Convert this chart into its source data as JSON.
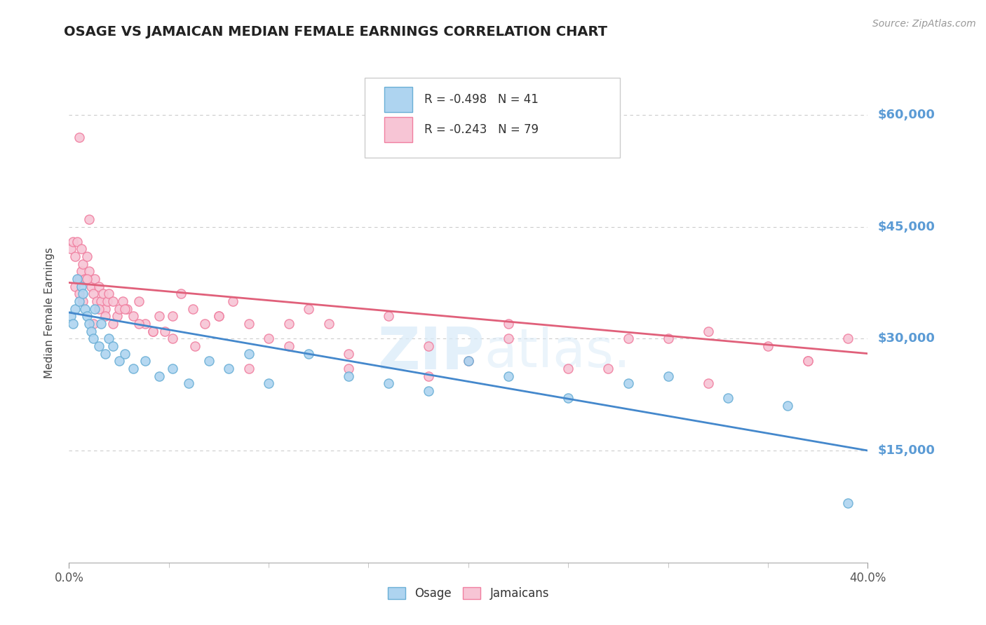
{
  "title": "OSAGE VS JAMAICAN MEDIAN FEMALE EARNINGS CORRELATION CHART",
  "ylabel": "Median Female Earnings",
  "source": "Source: ZipAtlas.com",
  "xlim": [
    0.0,
    0.4
  ],
  "ylim": [
    0,
    67000
  ],
  "yticks": [
    15000,
    30000,
    45000,
    60000
  ],
  "ytick_labels": [
    "$15,000",
    "$30,000",
    "$45,000",
    "$60,000"
  ],
  "xtick_labels": [
    "0.0%",
    "40.0%"
  ],
  "background_color": "#ffffff",
  "grid_color": "#cccccc",
  "osage_color": "#aed4f0",
  "jamaican_color": "#f7c5d5",
  "osage_edge_color": "#6aafd6",
  "jamaican_edge_color": "#f07fa0",
  "osage_line_color": "#4488cc",
  "jamaican_line_color": "#e0607a",
  "ytick_color": "#5b9bd5",
  "watermark_color": "#d8eaf8",
  "legend_R_osage": "R = -0.498",
  "legend_N_osage": "N = 41",
  "legend_R_jamaican": "R = -0.243",
  "legend_N_jamaican": "N = 79",
  "osage_x": [
    0.001,
    0.002,
    0.003,
    0.004,
    0.005,
    0.006,
    0.007,
    0.008,
    0.009,
    0.01,
    0.011,
    0.012,
    0.013,
    0.015,
    0.016,
    0.018,
    0.02,
    0.022,
    0.025,
    0.028,
    0.032,
    0.038,
    0.045,
    0.052,
    0.06,
    0.07,
    0.08,
    0.09,
    0.1,
    0.12,
    0.14,
    0.16,
    0.18,
    0.2,
    0.22,
    0.25,
    0.28,
    0.3,
    0.33,
    0.36,
    0.39
  ],
  "osage_y": [
    33000,
    32000,
    34000,
    38000,
    35000,
    37000,
    36000,
    34000,
    33000,
    32000,
    31000,
    30000,
    34000,
    29000,
    32000,
    28000,
    30000,
    29000,
    27000,
    28000,
    26000,
    27000,
    25000,
    26000,
    24000,
    27000,
    26000,
    28000,
    24000,
    28000,
    25000,
    24000,
    23000,
    27000,
    25000,
    22000,
    24000,
    25000,
    22000,
    21000,
    8000
  ],
  "jamaican_x": [
    0.001,
    0.002,
    0.003,
    0.004,
    0.005,
    0.006,
    0.006,
    0.007,
    0.008,
    0.009,
    0.01,
    0.011,
    0.012,
    0.013,
    0.014,
    0.015,
    0.016,
    0.017,
    0.018,
    0.019,
    0.02,
    0.022,
    0.024,
    0.025,
    0.027,
    0.029,
    0.032,
    0.035,
    0.038,
    0.042,
    0.045,
    0.048,
    0.052,
    0.056,
    0.062,
    0.068,
    0.075,
    0.082,
    0.09,
    0.1,
    0.11,
    0.12,
    0.13,
    0.14,
    0.16,
    0.18,
    0.2,
    0.22,
    0.25,
    0.28,
    0.3,
    0.32,
    0.35,
    0.37,
    0.39,
    0.003,
    0.005,
    0.007,
    0.009,
    0.012,
    0.015,
    0.018,
    0.022,
    0.028,
    0.035,
    0.042,
    0.052,
    0.063,
    0.075,
    0.09,
    0.11,
    0.14,
    0.18,
    0.22,
    0.27,
    0.32,
    0.37,
    0.005,
    0.01
  ],
  "jamaican_y": [
    42000,
    43000,
    41000,
    43000,
    38000,
    39000,
    42000,
    40000,
    38000,
    41000,
    39000,
    37000,
    36000,
    38000,
    35000,
    37000,
    35000,
    36000,
    34000,
    35000,
    36000,
    35000,
    33000,
    34000,
    35000,
    34000,
    33000,
    35000,
    32000,
    31000,
    33000,
    31000,
    33000,
    36000,
    34000,
    32000,
    33000,
    35000,
    32000,
    30000,
    29000,
    34000,
    32000,
    28000,
    33000,
    29000,
    27000,
    32000,
    26000,
    30000,
    30000,
    31000,
    29000,
    27000,
    30000,
    37000,
    36000,
    35000,
    38000,
    32000,
    34000,
    33000,
    32000,
    34000,
    32000,
    31000,
    30000,
    29000,
    33000,
    26000,
    32000,
    26000,
    25000,
    30000,
    26000,
    24000,
    27000,
    57000,
    46000
  ],
  "osage_line_x": [
    0.0,
    0.4
  ],
  "osage_line_y": [
    33500,
    15000
  ],
  "jamaican_line_x": [
    0.0,
    0.4
  ],
  "jamaican_line_y": [
    37500,
    28000
  ]
}
